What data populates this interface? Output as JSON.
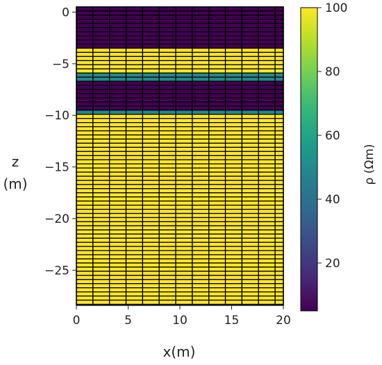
{
  "chart_data": {
    "type": "heatmap",
    "title": "",
    "xlabel": "x(m)",
    "ylabel_line1": "z",
    "ylabel_line2": "(m)",
    "xlim": [
      0,
      20
    ],
    "ylim": [
      -28.4,
      0.5
    ],
    "x_ticks": [
      0,
      5,
      10,
      15,
      20
    ],
    "x_tick_labels": [
      "0",
      "5",
      "10",
      "15",
      "20"
    ],
    "y_ticks": [
      0,
      -5,
      -10,
      -15,
      -20,
      -25
    ],
    "y_tick_labels": [
      "0",
      "−5",
      "−10",
      "−15",
      "−20",
      "−25"
    ],
    "grid": {
      "x_edges": [
        0,
        1.6,
        3.2,
        4.8,
        6.4,
        8.0,
        9.6,
        11.2,
        12.8,
        14.4,
        16.0,
        17.6,
        19.2,
        20.0
      ],
      "row_height": 0.4,
      "z_top": 0.5,
      "z_bottom": -28.4
    },
    "layers": [
      {
        "z_top": 0.5,
        "z_bottom": -3.3,
        "rho": 5
      },
      {
        "z_top": -3.3,
        "z_bottom": -6.1,
        "rho": 100
      },
      {
        "z_top": -6.1,
        "z_bottom": -6.6,
        "rho": 50
      },
      {
        "z_top": -6.6,
        "z_bottom": -9.6,
        "rho": 5
      },
      {
        "z_top": -9.6,
        "z_bottom": -10.0,
        "rho": 50
      },
      {
        "z_top": -10.0,
        "z_bottom": -28.4,
        "rho": 100
      }
    ],
    "colorbar": {
      "label": "ρ (Ωm)",
      "colormap": "viridis",
      "range": [
        5,
        100
      ],
      "ticks": [
        20,
        40,
        60,
        80,
        100
      ],
      "tick_labels": [
        "20",
        "40",
        "60",
        "80",
        "100"
      ],
      "colors": [
        "#440154",
        "#482878",
        "#3e4a89",
        "#31688e",
        "#26828e",
        "#1f9e89",
        "#35b779",
        "#6ece58",
        "#b5de2b",
        "#fde725"
      ]
    },
    "cell_edge_color": "#000000"
  }
}
